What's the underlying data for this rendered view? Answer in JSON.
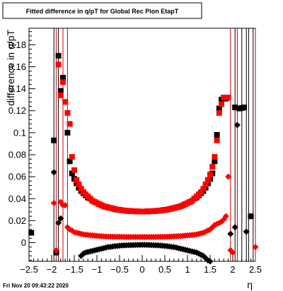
{
  "chart_data": {
    "type": "scatter",
    "title": "Fitted difference in q/pT for Global Rec Pion EtapT",
    "xlabel": "η",
    "ylabel": "difference in q/pT",
    "xlim": [
      -2.5,
      2.5
    ],
    "ylim": [
      -0.017,
      0.195
    ],
    "x_ticks": [
      "−2.5",
      "−2",
      "−1.5",
      "−1",
      "−0.5",
      "0",
      "0.5",
      "1",
      "1.5",
      "2",
      "2.5"
    ],
    "y_ticks": [
      "0",
      "0.02",
      "0.04",
      "0.06",
      "0.08",
      "0.1",
      "0.12",
      "0.14",
      "0.16",
      "0.18"
    ],
    "grid": false,
    "footer_text": "Fri Nov 20 09:43:22 2020",
    "series": [
      {
        "marker": "square",
        "color": "#000000",
        "points": [
          [
            -2.45,
            0.009
          ],
          [
            -1.95,
            0.093
          ],
          [
            -1.9,
            -0.009
          ],
          [
            -1.85,
            0.17
          ],
          [
            -1.8,
            0.138
          ],
          [
            -1.75,
            0.15
          ],
          [
            -1.65,
            0.1
          ],
          [
            -1.6,
            0.074
          ],
          [
            -1.55,
            0.063
          ],
          [
            -1.5,
            0.058
          ],
          [
            -1.45,
            0.054
          ],
          [
            -1.4,
            0.05
          ],
          [
            -1.35,
            0.047
          ],
          [
            -1.3,
            0.045
          ],
          [
            -1.25,
            0.043
          ],
          [
            -1.2,
            0.041
          ],
          [
            -1.15,
            0.04
          ],
          [
            -1.1,
            0.038
          ],
          [
            -1.05,
            0.037
          ],
          [
            -1.0,
            0.036
          ],
          [
            -0.95,
            0.035
          ],
          [
            -0.9,
            0.034
          ],
          [
            -0.85,
            0.033
          ],
          [
            -0.8,
            0.0325
          ],
          [
            -0.75,
            0.032
          ],
          [
            -0.7,
            0.0315
          ],
          [
            -0.65,
            0.031
          ],
          [
            -0.6,
            0.0305
          ],
          [
            -0.55,
            0.03
          ],
          [
            -0.5,
            0.0298
          ],
          [
            -0.45,
            0.0295
          ],
          [
            -0.4,
            0.0292
          ],
          [
            -0.35,
            0.029
          ],
          [
            -0.3,
            0.0288
          ],
          [
            -0.25,
            0.0287
          ],
          [
            -0.2,
            0.0286
          ],
          [
            -0.15,
            0.0285
          ],
          [
            -0.1,
            0.0284
          ],
          [
            -0.05,
            0.0283
          ],
          [
            0.0,
            0.0283
          ],
          [
            0.05,
            0.0283
          ],
          [
            0.1,
            0.0284
          ],
          [
            0.15,
            0.0285
          ],
          [
            0.2,
            0.0286
          ],
          [
            0.25,
            0.0287
          ],
          [
            0.3,
            0.0288
          ],
          [
            0.35,
            0.029
          ],
          [
            0.4,
            0.0292
          ],
          [
            0.45,
            0.0295
          ],
          [
            0.5,
            0.0298
          ],
          [
            0.55,
            0.03
          ],
          [
            0.6,
            0.0305
          ],
          [
            0.65,
            0.031
          ],
          [
            0.7,
            0.0315
          ],
          [
            0.75,
            0.032
          ],
          [
            0.8,
            0.0325
          ],
          [
            0.85,
            0.033
          ],
          [
            0.9,
            0.034
          ],
          [
            0.95,
            0.035
          ],
          [
            1.0,
            0.036
          ],
          [
            1.05,
            0.037
          ],
          [
            1.1,
            0.038
          ],
          [
            1.15,
            0.04
          ],
          [
            1.2,
            0.041
          ],
          [
            1.25,
            0.043
          ],
          [
            1.3,
            0.045
          ],
          [
            1.35,
            0.047
          ],
          [
            1.4,
            0.05
          ],
          [
            1.45,
            0.054
          ],
          [
            1.5,
            0.058
          ],
          [
            1.55,
            0.063
          ],
          [
            1.6,
            0.074
          ],
          [
            1.65,
            0.098
          ],
          [
            1.7,
            0.122
          ],
          [
            1.75,
            0.13
          ],
          [
            1.8,
            0.131
          ],
          [
            1.85,
            0.131
          ],
          [
            2.05,
            0.123
          ],
          [
            2.15,
            0.122
          ],
          [
            2.2,
            0.1225
          ],
          [
            2.25,
            0.123
          ],
          [
            2.4,
            0.024
          ]
        ]
      },
      {
        "marker": "square",
        "color": "#ff0000",
        "points": [
          [
            -1.85,
            0.162
          ],
          [
            -1.8,
            0.134
          ],
          [
            -1.75,
            0.146
          ],
          [
            -1.7,
            0.128
          ],
          [
            -1.65,
            0.118
          ],
          [
            -1.6,
            0.108
          ],
          [
            -1.55,
            0.078
          ],
          [
            -1.5,
            0.066
          ],
          [
            -1.45,
            0.057
          ],
          [
            -1.4,
            0.053
          ],
          [
            -1.35,
            0.049
          ],
          [
            -1.3,
            0.046
          ],
          [
            -1.25,
            0.044
          ],
          [
            -1.2,
            0.042
          ],
          [
            -1.15,
            0.04
          ],
          [
            -1.1,
            0.038
          ],
          [
            -1.05,
            0.037
          ],
          [
            -1.0,
            0.036
          ],
          [
            -0.95,
            0.035
          ],
          [
            -0.9,
            0.034
          ],
          [
            -0.85,
            0.033
          ],
          [
            -0.8,
            0.0325
          ],
          [
            -0.75,
            0.032
          ],
          [
            -0.7,
            0.0315
          ],
          [
            -0.65,
            0.031
          ],
          [
            -0.6,
            0.0305
          ],
          [
            -0.55,
            0.03
          ],
          [
            -0.5,
            0.0298
          ],
          [
            -0.45,
            0.0295
          ],
          [
            -0.4,
            0.0292
          ],
          [
            -0.35,
            0.029
          ],
          [
            -0.3,
            0.0288
          ],
          [
            -0.25,
            0.0287
          ],
          [
            -0.2,
            0.0286
          ],
          [
            -0.15,
            0.0285
          ],
          [
            -0.1,
            0.0284
          ],
          [
            -0.05,
            0.0283
          ],
          [
            0.0,
            0.0283
          ],
          [
            0.05,
            0.0283
          ],
          [
            0.1,
            0.0284
          ],
          [
            0.15,
            0.0285
          ],
          [
            0.2,
            0.0286
          ],
          [
            0.25,
            0.0287
          ],
          [
            0.3,
            0.0288
          ],
          [
            0.35,
            0.029
          ],
          [
            0.4,
            0.0292
          ],
          [
            0.45,
            0.0295
          ],
          [
            0.5,
            0.0298
          ],
          [
            0.55,
            0.03
          ],
          [
            0.6,
            0.0305
          ],
          [
            0.65,
            0.031
          ],
          [
            0.7,
            0.0315
          ],
          [
            0.75,
            0.032
          ],
          [
            0.8,
            0.0325
          ],
          [
            0.85,
            0.033
          ],
          [
            0.9,
            0.034
          ],
          [
            0.95,
            0.035
          ],
          [
            1.0,
            0.036
          ],
          [
            1.05,
            0.037
          ],
          [
            1.1,
            0.038
          ],
          [
            1.15,
            0.04
          ],
          [
            1.2,
            0.042
          ],
          [
            1.25,
            0.044
          ],
          [
            1.3,
            0.046
          ],
          [
            1.35,
            0.049
          ],
          [
            1.4,
            0.053
          ],
          [
            1.45,
            0.057
          ],
          [
            1.5,
            0.062
          ],
          [
            1.55,
            0.069
          ],
          [
            1.6,
            0.078
          ],
          [
            1.65,
            0.093
          ],
          [
            1.7,
            0.118
          ],
          [
            1.75,
            0.126
          ],
          [
            1.8,
            0.132
          ],
          [
            1.85,
            0.132
          ],
          [
            1.9,
            0.132
          ]
        ]
      },
      {
        "marker": "diamond",
        "color": "#000000",
        "points": [
          [
            -1.35,
            -0.012
          ],
          [
            -1.3,
            -0.01
          ],
          [
            -1.25,
            -0.009
          ],
          [
            -1.2,
            -0.0085
          ],
          [
            -1.15,
            -0.008
          ],
          [
            -1.1,
            -0.0075
          ],
          [
            -1.05,
            -0.007
          ],
          [
            -1.0,
            -0.0065
          ],
          [
            -0.95,
            -0.006
          ],
          [
            -0.9,
            -0.0055
          ],
          [
            -0.85,
            -0.005
          ],
          [
            -0.8,
            -0.0045
          ],
          [
            -0.75,
            -0.004
          ],
          [
            -0.7,
            -0.0038
          ],
          [
            -0.65,
            -0.0035
          ],
          [
            -0.6,
            -0.0032
          ],
          [
            -0.55,
            -0.003
          ],
          [
            -0.5,
            -0.0028
          ],
          [
            -0.45,
            -0.0026
          ],
          [
            -0.4,
            -0.0025
          ],
          [
            -0.35,
            -0.0024
          ],
          [
            -0.3,
            -0.0023
          ],
          [
            -0.25,
            -0.0022
          ],
          [
            -0.2,
            -0.0022
          ],
          [
            -0.15,
            -0.0021
          ],
          [
            -0.1,
            -0.0021
          ],
          [
            -0.05,
            -0.002
          ],
          [
            0.0,
            -0.002
          ],
          [
            0.05,
            -0.002
          ],
          [
            0.1,
            -0.0021
          ],
          [
            0.15,
            -0.0021
          ],
          [
            0.2,
            -0.0022
          ],
          [
            0.25,
            -0.0023
          ],
          [
            0.3,
            -0.0024
          ],
          [
            0.35,
            -0.0025
          ],
          [
            0.4,
            -0.0026
          ],
          [
            0.45,
            -0.0028
          ],
          [
            0.5,
            -0.003
          ],
          [
            0.55,
            -0.0032
          ],
          [
            0.6,
            -0.0035
          ],
          [
            0.65,
            -0.0038
          ],
          [
            0.7,
            -0.004
          ],
          [
            0.75,
            -0.0045
          ],
          [
            0.8,
            -0.005
          ],
          [
            0.85,
            -0.0055
          ],
          [
            0.9,
            -0.006
          ],
          [
            0.95,
            -0.0065
          ],
          [
            1.0,
            -0.007
          ],
          [
            1.05,
            -0.0075
          ],
          [
            1.1,
            -0.008
          ],
          [
            1.15,
            -0.0085
          ],
          [
            1.2,
            -0.009
          ],
          [
            1.25,
            -0.01
          ],
          [
            1.3,
            -0.011
          ],
          [
            1.35,
            -0.012
          ],
          [
            1.4,
            -0.014
          ],
          [
            1.45,
            -0.016
          ],
          [
            1.5,
            -0.017
          ],
          [
            -1.95,
            0.064
          ],
          [
            -1.9,
            -0.009
          ],
          [
            -1.85,
            0.018
          ],
          [
            -1.8,
            0.022
          ],
          [
            1.95,
            0.008
          ],
          [
            2.05,
            0.014
          ],
          [
            2.1,
            0.107
          ],
          [
            2.3,
            0.01
          ],
          [
            2.4,
            0.024
          ]
        ]
      },
      {
        "marker": "diamond",
        "color": "#ff0000",
        "points": [
          [
            -1.95,
            0.036
          ],
          [
            -1.9,
            -0.007
          ],
          [
            -1.8,
            0.037
          ],
          [
            -1.75,
            0.034
          ],
          [
            -1.7,
            0.034
          ],
          [
            -1.65,
            0.014
          ],
          [
            -1.6,
            0.012
          ],
          [
            -1.55,
            0.011
          ],
          [
            -1.5,
            0.0095
          ],
          [
            -1.45,
            0.009
          ],
          [
            -1.4,
            0.0085
          ],
          [
            -1.35,
            0.008
          ],
          [
            -1.3,
            0.0075
          ],
          [
            -1.25,
            0.0072
          ],
          [
            -1.2,
            0.007
          ],
          [
            -1.15,
            0.0068
          ],
          [
            -1.1,
            0.0066
          ],
          [
            -1.05,
            0.0064
          ],
          [
            -1.0,
            0.0062
          ],
          [
            -0.95,
            0.006
          ],
          [
            -0.9,
            0.0058
          ],
          [
            -0.85,
            0.0057
          ],
          [
            -0.8,
            0.0056
          ],
          [
            -0.75,
            0.0055
          ],
          [
            -0.7,
            0.0055
          ],
          [
            -0.65,
            0.0054
          ],
          [
            -0.6,
            0.0054
          ],
          [
            -0.55,
            0.0053
          ],
          [
            -0.5,
            0.0053
          ],
          [
            -0.45,
            0.0053
          ],
          [
            -0.4,
            0.0052
          ],
          [
            -0.35,
            0.0052
          ],
          [
            -0.3,
            0.0052
          ],
          [
            -0.25,
            0.0052
          ],
          [
            -0.2,
            0.0052
          ],
          [
            -0.15,
            0.0052
          ],
          [
            -0.1,
            0.0052
          ],
          [
            -0.05,
            0.0052
          ],
          [
            0.0,
            0.0052
          ],
          [
            0.05,
            0.0052
          ],
          [
            0.1,
            0.0052
          ],
          [
            0.15,
            0.0052
          ],
          [
            0.2,
            0.0052
          ],
          [
            0.25,
            0.0052
          ],
          [
            0.3,
            0.0052
          ],
          [
            0.35,
            0.0053
          ],
          [
            0.4,
            0.0053
          ],
          [
            0.45,
            0.0053
          ],
          [
            0.5,
            0.0054
          ],
          [
            0.55,
            0.0054
          ],
          [
            0.6,
            0.0055
          ],
          [
            0.65,
            0.0056
          ],
          [
            0.7,
            0.0057
          ],
          [
            0.75,
            0.0058
          ],
          [
            0.8,
            0.0059
          ],
          [
            0.85,
            0.006
          ],
          [
            0.9,
            0.0062
          ],
          [
            0.95,
            0.0064
          ],
          [
            1.0,
            0.0066
          ],
          [
            1.05,
            0.0068
          ],
          [
            1.1,
            0.007
          ],
          [
            1.15,
            0.0072
          ],
          [
            1.2,
            0.0075
          ],
          [
            1.25,
            0.008
          ],
          [
            1.3,
            0.0085
          ],
          [
            1.35,
            0.009
          ],
          [
            1.4,
            0.01
          ],
          [
            1.45,
            0.011
          ],
          [
            1.5,
            0.012
          ],
          [
            1.55,
            0.014
          ],
          [
            1.6,
            0.016
          ],
          [
            1.65,
            0.017
          ],
          [
            1.7,
            0.018
          ],
          [
            1.75,
            0.019
          ],
          [
            1.8,
            0.021
          ],
          [
            1.85,
            0.024
          ],
          [
            1.9,
            0.06
          ],
          [
            1.95,
            -0.007
          ],
          [
            2.0,
            -0.009
          ],
          [
            2.5,
            -0.004
          ]
        ]
      }
    ]
  }
}
